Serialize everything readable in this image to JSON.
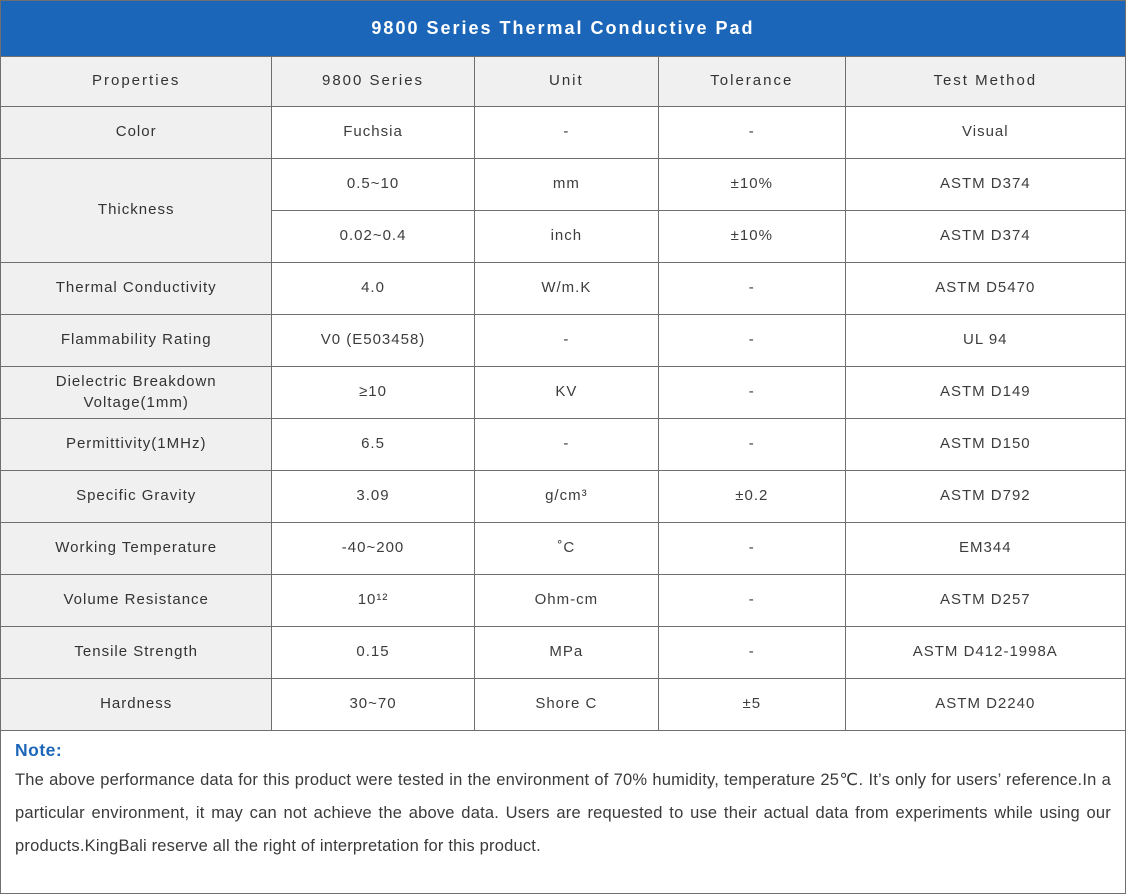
{
  "title": "9800 Series Thermal Conductive Pad",
  "colors": {
    "title_bar_bg": "#1b66b8",
    "title_text": "#ffffff",
    "shaded_cell_bg": "#f0f0f0",
    "border": "#6f6f6f",
    "note_accent": "#1b66b8",
    "body_text": "#3d3d3d"
  },
  "table": {
    "columns": [
      "Properties",
      "9800 Series",
      "Unit",
      "Tolerance",
      "Test Method"
    ],
    "groups": [
      {
        "property": "Color",
        "rows": [
          [
            "Fuchsia",
            "-",
            "-",
            "Visual"
          ]
        ]
      },
      {
        "property": "Thickness",
        "rows": [
          [
            "0.5~10",
            "mm",
            "±10%",
            "ASTM D374"
          ],
          [
            "0.02~0.4",
            "inch",
            "±10%",
            "ASTM D374"
          ]
        ]
      },
      {
        "property": "Thermal Conductivity",
        "rows": [
          [
            "4.0",
            "W/m.K",
            "-",
            "ASTM D5470"
          ]
        ]
      },
      {
        "property": "Flammability Rating",
        "rows": [
          [
            "V0 (E503458)",
            "-",
            "-",
            "UL 94"
          ]
        ]
      },
      {
        "property": "Dielectric Breakdown Voltage(1mm)",
        "rows": [
          [
            "≥10",
            "KV",
            "-",
            "ASTM D149"
          ]
        ]
      },
      {
        "property": "Permittivity(1MHz)",
        "rows": [
          [
            "6.5",
            "-",
            "-",
            "ASTM D150"
          ]
        ]
      },
      {
        "property": "Specific Gravity",
        "rows": [
          [
            "3.09",
            "g/cm³",
            "±0.2",
            "ASTM D792"
          ]
        ]
      },
      {
        "property": "Working Temperature",
        "rows": [
          [
            "-40~200",
            "˚C",
            "-",
            "EM344"
          ]
        ]
      },
      {
        "property": "Volume Resistance",
        "rows": [
          [
            "10¹²",
            "Ohm-cm",
            "-",
            "ASTM D257"
          ]
        ]
      },
      {
        "property": "Tensile Strength",
        "rows": [
          [
            "0.15",
            "MPa",
            "-",
            "ASTM D412-1998A"
          ]
        ]
      },
      {
        "property": "Hardness",
        "rows": [
          [
            "30~70",
            "Shore C",
            "±5",
            "ASTM D2240"
          ]
        ]
      }
    ]
  },
  "note": {
    "label": "Note:",
    "text": "The above performance data for this product were tested in the environment of 70% humidity, temperature 25℃. It’s only for users’ reference.In a particular environment, it may can not achieve the above data. Users are requested to use their actual data from experiments while using our products.KingBali reserve all the right of interpretation for this product."
  }
}
